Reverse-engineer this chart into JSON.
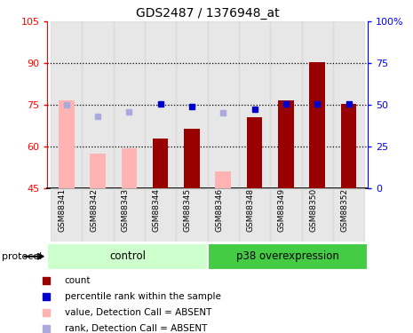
{
  "title": "GDS2487 / 1376948_at",
  "samples": [
    "GSM88341",
    "GSM88342",
    "GSM88343",
    "GSM88344",
    "GSM88345",
    "GSM88346",
    "GSM88348",
    "GSM88349",
    "GSM88350",
    "GSM88352"
  ],
  "absent": [
    true,
    true,
    true,
    false,
    false,
    true,
    false,
    false,
    false,
    false
  ],
  "count_values": [
    76.5,
    57.5,
    59.5,
    63.0,
    66.5,
    51.0,
    70.5,
    76.5,
    90.5,
    75.5
  ],
  "rank_pct": [
    50.0,
    43.0,
    46.0,
    50.5,
    49.0,
    45.5,
    47.5,
    50.5,
    50.5,
    50.5
  ],
  "ylim_left": [
    45,
    105
  ],
  "ylim_right": [
    0,
    100
  ],
  "yticks_left": [
    45,
    60,
    75,
    90,
    105
  ],
  "yticks_right": [
    0,
    25,
    50,
    75,
    100
  ],
  "color_present_bar": "#990000",
  "color_absent_bar": "#ffb3b3",
  "color_present_rank": "#0000cc",
  "color_absent_rank": "#aaaadd",
  "ctrl_color": "#ccffcc",
  "p38_color": "#44cc44",
  "n_control": 5,
  "n_p38": 5,
  "legend_items": [
    {
      "label": "count",
      "color": "#990000"
    },
    {
      "label": "percentile rank within the sample",
      "color": "#0000cc"
    },
    {
      "label": "value, Detection Call = ABSENT",
      "color": "#ffb3b3"
    },
    {
      "label": "rank, Detection Call = ABSENT",
      "color": "#aaaadd"
    }
  ]
}
